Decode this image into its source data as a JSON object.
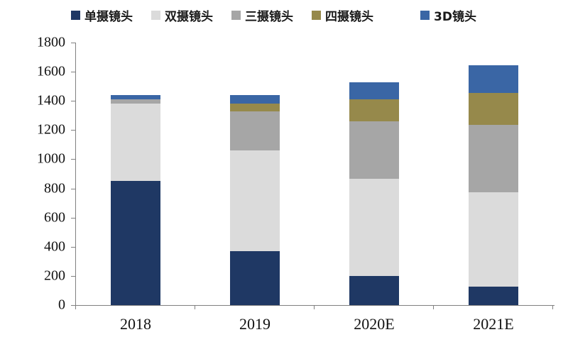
{
  "chart_data": {
    "type": "bar",
    "stacked": true,
    "title": "",
    "xlabel": "",
    "ylabel": "",
    "categories": [
      "2018",
      "2019",
      "2020E",
      "2021E"
    ],
    "series": [
      {
        "name": "单摄镜头",
        "color": "#1F3864",
        "values": [
          850,
          370,
          200,
          125
        ]
      },
      {
        "name": "双摄镜头",
        "color": "#DBDBDB",
        "values": [
          530,
          690,
          665,
          650
        ]
      },
      {
        "name": "三摄镜头",
        "color": "#A6A6A6",
        "values": [
          30,
          270,
          395,
          460
        ]
      },
      {
        "name": "四摄镜头",
        "color": "#96894B",
        "values": [
          0,
          50,
          150,
          220
        ]
      },
      {
        "name": "3D镜头",
        "color": "#3A66A5",
        "values": [
          30,
          60,
          120,
          190
        ]
      }
    ],
    "stack_totals": [
      1440,
      1440,
      1530,
      1645
    ],
    "ylim": [
      0,
      1800
    ],
    "yticks": [
      0,
      200,
      400,
      600,
      800,
      1000,
      1200,
      1400,
      1600,
      1800
    ],
    "grid": false,
    "legend_position": "top",
    "axis_color": "#808080"
  },
  "legend": {
    "items": [
      {
        "label": "单摄镜头"
      },
      {
        "label": "双摄镜头"
      },
      {
        "label": "三摄镜头"
      },
      {
        "label": "四摄镜头"
      },
      {
        "label": "3D镜头"
      }
    ]
  }
}
